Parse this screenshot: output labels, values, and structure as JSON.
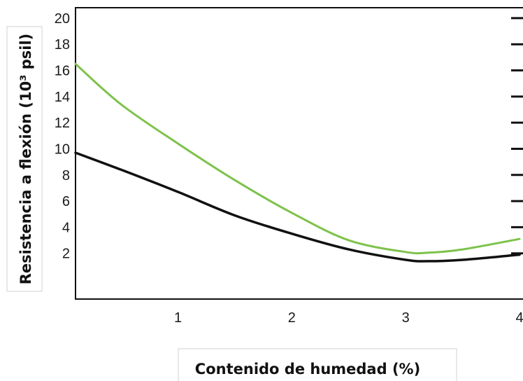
{
  "chart_data": {
    "type": "line",
    "title": "",
    "xlabel": "Contenido de humedad (%)",
    "ylabel": "Resistencia a flexión (10³ psil)",
    "xlim": [
      0.1,
      4.0
    ],
    "ylim": [
      -1.5,
      20.8
    ],
    "x_ticks": [
      1,
      2,
      3,
      4
    ],
    "y_ticks": [
      2,
      4,
      6,
      8,
      10,
      12,
      14,
      16,
      18,
      20
    ],
    "grid": false,
    "series": [
      {
        "color": "#7dc24b",
        "x": [
          0.1,
          0.5,
          1.0,
          1.5,
          2.0,
          2.5,
          3.0,
          3.2,
          3.5,
          4.0
        ],
        "y": [
          16.5,
          13.4,
          10.4,
          7.6,
          5.1,
          3.0,
          2.1,
          2.05,
          2.3,
          3.1
        ]
      },
      {
        "color": "#111111",
        "x": [
          0.1,
          0.5,
          1.0,
          1.5,
          2.0,
          2.5,
          3.0,
          3.2,
          3.5,
          4.0
        ],
        "y": [
          9.7,
          8.4,
          6.7,
          4.9,
          3.5,
          2.3,
          1.5,
          1.4,
          1.5,
          1.9
        ]
      }
    ]
  }
}
